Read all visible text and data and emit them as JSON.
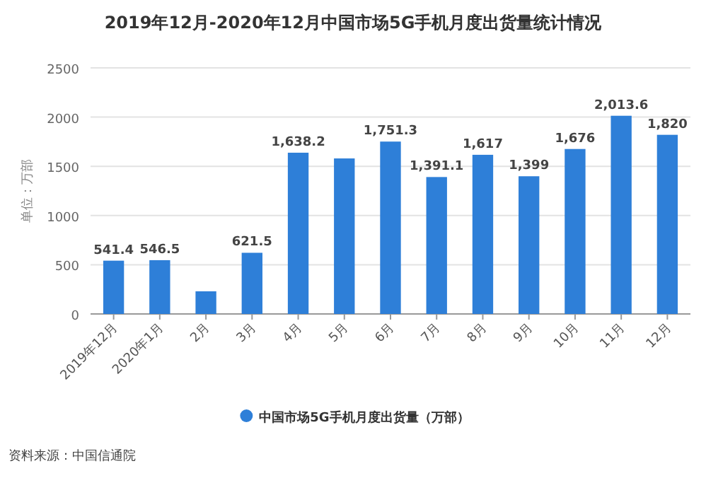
{
  "chart_data": {
    "type": "bar",
    "title": "2019年12月-2020年12月中国市场5G手机月度出货量统计情况",
    "ylabel": "单位：万部",
    "categories": [
      "2019年12月",
      "2020年1月",
      "2月",
      "3月",
      "4月",
      "5月",
      "6月",
      "7月",
      "8月",
      "9月",
      "10月",
      "11月",
      "12月"
    ],
    "series": [
      {
        "name": "中国市场5G手机月度出货量（万部）",
        "color": "#2e7fd8",
        "values": [
          541.4,
          546.5,
          230,
          621.5,
          1638.2,
          1580,
          1751.3,
          1391.1,
          1617,
          1399,
          1676,
          2013.6,
          1820
        ],
        "value_labels": [
          "541.4",
          "546.5",
          null,
          "621.5",
          "1,638.2",
          null,
          "1,751.3",
          "1,391.1",
          "1,617",
          "1,399",
          "1,676",
          "2,013.6",
          "1,820"
        ]
      }
    ],
    "ylim": [
      0,
      2500
    ],
    "yticks": [
      0,
      500,
      1000,
      1500,
      2000,
      2500
    ],
    "grid": "y",
    "legend": "bottom",
    "annotations": [
      "资料来源：中国信通院"
    ]
  }
}
